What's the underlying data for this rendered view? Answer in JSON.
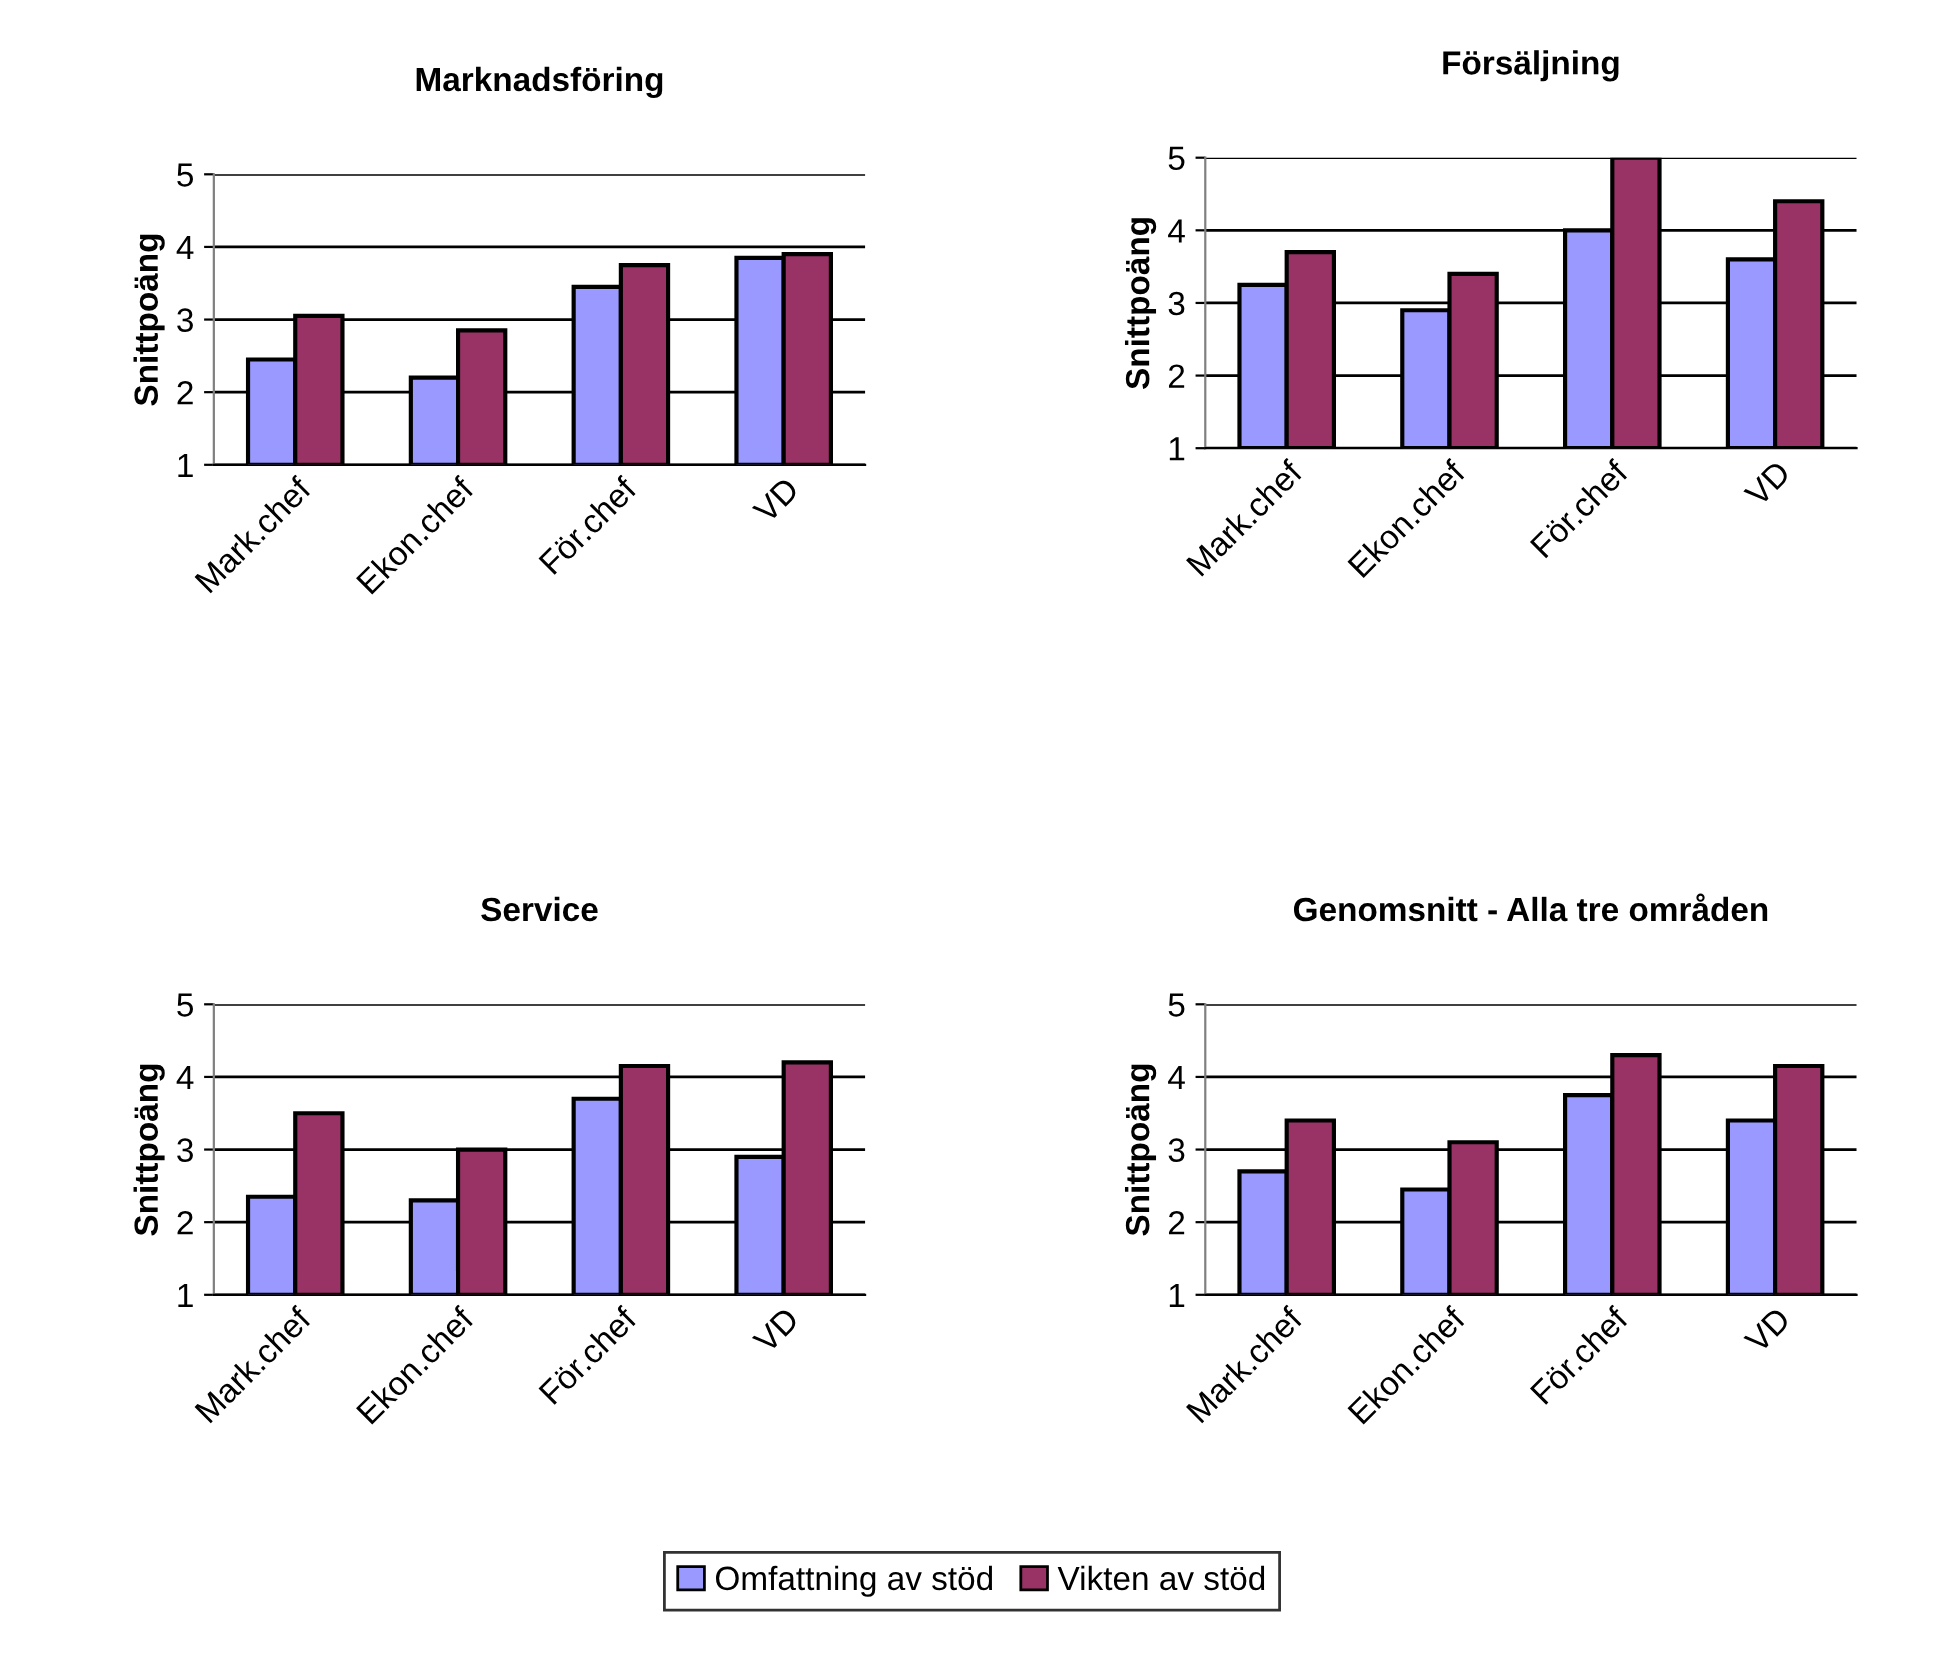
{
  "chart_data": [
    {
      "type": "bar",
      "title": "Marknadsföring",
      "ylabel": "Snittpoäng",
      "categories": [
        "Mark.chef",
        "Ekon.chef",
        "För.chef",
        "VD"
      ],
      "ylim": [
        1,
        5
      ],
      "yticks": [
        1,
        2,
        3,
        4,
        5
      ],
      "grid": "y",
      "legend": "bottom",
      "series": [
        {
          "name": "Omfattning av stöd",
          "color": "#9999ff",
          "values": [
            2.45,
            2.2,
            3.45,
            3.85
          ]
        },
        {
          "name": "Vikten av stöd",
          "color": "#993366",
          "values": [
            3.05,
            2.85,
            3.75,
            3.9
          ]
        }
      ]
    },
    {
      "type": "bar",
      "title": "Försäljning",
      "ylabel": "Snittpoäng",
      "categories": [
        "Mark.chef",
        "Ekon.chef",
        "För.chef",
        "VD"
      ],
      "ylim": [
        1,
        5
      ],
      "yticks": [
        1,
        2,
        3,
        4,
        5
      ],
      "grid": "y",
      "series": [
        {
          "color": "#9999ff",
          "values": [
            3.25,
            2.9,
            4.0,
            3.6
          ]
        },
        {
          "color": "#993366",
          "values": [
            3.7,
            3.4,
            5.0,
            4.4
          ]
        }
      ]
    },
    {
      "type": "bar",
      "title": "Service",
      "ylabel": "Snittpoäng",
      "categories": [
        "Mark.chef",
        "Ekon.chef",
        "För.chef",
        "VD"
      ],
      "ylim": [
        1,
        5
      ],
      "yticks": [
        1,
        2,
        3,
        4,
        5
      ],
      "grid": "y",
      "series": [
        {
          "color": "#9999ff",
          "values": [
            2.35,
            2.3,
            3.7,
            2.9
          ]
        },
        {
          "color": "#993366",
          "values": [
            3.5,
            3.0,
            4.15,
            4.2
          ]
        }
      ]
    },
    {
      "type": "bar",
      "title": "Genomsnitt - Alla tre områden",
      "ylabel": "Snittpoäng",
      "categories": [
        "Mark.chef",
        "Ekon.chef",
        "För.chef",
        "VD"
      ],
      "ylim": [
        1,
        5
      ],
      "yticks": [
        1,
        2,
        3,
        4,
        5
      ],
      "grid": "y",
      "series": [
        {
          "color": "#9999ff",
          "values": [
            2.7,
            2.45,
            3.75,
            3.4
          ]
        },
        {
          "color": "#993366",
          "values": [
            3.4,
            3.1,
            4.3,
            4.15
          ]
        }
      ]
    }
  ]
}
